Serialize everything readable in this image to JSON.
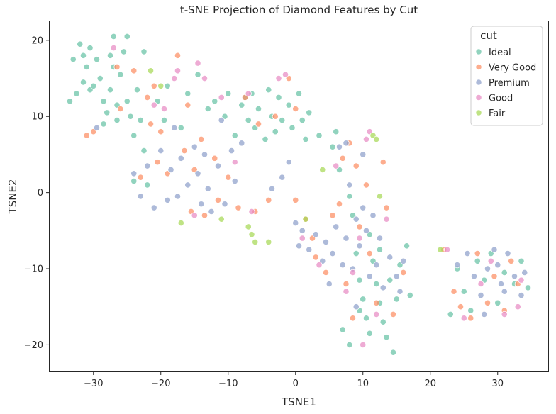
{
  "chart_data": {
    "type": "scatter",
    "title": "t-SNE Projection of Diamond Features by Cut",
    "xlabel": "TSNE1",
    "ylabel": "TSNE2",
    "xlim": [
      -36.5,
      37.5
    ],
    "ylim": [
      -23.5,
      22.5
    ],
    "xticks": [
      -30,
      -20,
      -10,
      0,
      10,
      20,
      30
    ],
    "yticks": [
      -20,
      -10,
      0,
      10,
      20
    ],
    "xtick_labels": [
      "−30",
      "−20",
      "−10",
      "0",
      "10",
      "20",
      "30"
    ],
    "ytick_labels": [
      "−20",
      "−10",
      "0",
      "10",
      "20"
    ],
    "grid": false,
    "legend": {
      "title": "cut",
      "placement": "top-right"
    },
    "series": [
      {
        "name": "Ideal",
        "color": "#66c2a5",
        "points": [
          [
            -33.5,
            12.0
          ],
          [
            -33.0,
            17.5
          ],
          [
            -32.5,
            13.0
          ],
          [
            -32.0,
            19.5
          ],
          [
            -31.5,
            18.0
          ],
          [
            -31.5,
            14.5
          ],
          [
            -31.0,
            16.5
          ],
          [
            -30.5,
            19.0
          ],
          [
            -30.5,
            13.5
          ],
          [
            -30.0,
            14.0
          ],
          [
            -29.5,
            17.5
          ],
          [
            -29.0,
            15.0
          ],
          [
            -28.5,
            12.0
          ],
          [
            -28.5,
            9.0
          ],
          [
            -28.0,
            10.5
          ],
          [
            -27.5,
            18.0
          ],
          [
            -27.5,
            13.5
          ],
          [
            -27.0,
            20.5
          ],
          [
            -27.0,
            16.5
          ],
          [
            -26.5,
            11.5
          ],
          [
            -26.5,
            9.5
          ],
          [
            -26.0,
            15.5
          ],
          [
            -25.5,
            18.5
          ],
          [
            -25.0,
            20.5
          ],
          [
            -25.0,
            12.0
          ],
          [
            -24.5,
            10.0
          ],
          [
            -24.0,
            7.5
          ],
          [
            -23.5,
            13.5
          ],
          [
            -23.0,
            9.5
          ],
          [
            -22.5,
            18.5
          ],
          [
            -22.5,
            5.5
          ],
          [
            -24.0,
            1.5
          ],
          [
            -22.0,
            1.0
          ],
          [
            -20.5,
            12.0
          ],
          [
            -19.5,
            9.5
          ],
          [
            -19.0,
            14.0
          ],
          [
            -17.0,
            8.5
          ],
          [
            -16.0,
            13.0
          ],
          [
            -14.5,
            15.5
          ],
          [
            -13.0,
            11.0
          ],
          [
            -12.0,
            12.0
          ],
          [
            -10.5,
            10.0
          ],
          [
            -10.0,
            13.0
          ],
          [
            -9.0,
            7.5
          ],
          [
            -8.0,
            11.5
          ],
          [
            -7.5,
            12.5
          ],
          [
            -7.0,
            9.5
          ],
          [
            -6.5,
            13.0
          ],
          [
            -6.0,
            8.5
          ],
          [
            -5.5,
            11.0
          ],
          [
            -4.5,
            7.0
          ],
          [
            -4.0,
            13.5
          ],
          [
            -3.5,
            10.0
          ],
          [
            -3.0,
            8.0
          ],
          [
            -2.5,
            12.5
          ],
          [
            -2.0,
            9.5
          ],
          [
            -1.0,
            11.5
          ],
          [
            -0.5,
            8.5
          ],
          [
            0.5,
            13.0
          ],
          [
            1.0,
            9.5
          ],
          [
            1.5,
            7.0
          ],
          [
            2.0,
            10.5
          ],
          [
            3.5,
            7.5
          ],
          [
            5.5,
            6.0
          ],
          [
            6.0,
            8.0
          ],
          [
            6.5,
            3.0
          ],
          [
            8.0,
            -0.5
          ],
          [
            8.5,
            -3.0
          ],
          [
            9.0,
            -8.0
          ],
          [
            9.5,
            -11.5
          ],
          [
            10.0,
            -14.0
          ],
          [
            10.5,
            -16.5
          ],
          [
            11.0,
            -5.5
          ],
          [
            11.5,
            -9.0
          ],
          [
            12.0,
            -12.0
          ],
          [
            12.5,
            -14.5
          ],
          [
            13.0,
            -17.0
          ],
          [
            13.5,
            -19.0
          ],
          [
            14.0,
            -11.5
          ],
          [
            14.5,
            -21.0
          ],
          [
            15.0,
            -14.0
          ],
          [
            15.5,
            -9.5
          ],
          [
            16.5,
            -7.0
          ],
          [
            17.0,
            -13.5
          ],
          [
            7.0,
            -18.0
          ],
          [
            8.0,
            -20.0
          ],
          [
            9.5,
            -15.5
          ],
          [
            11.0,
            -18.5
          ],
          [
            12.5,
            -7.5
          ],
          [
            25.0,
            -13.0
          ],
          [
            26.0,
            -15.5
          ],
          [
            27.0,
            -9.0
          ],
          [
            28.0,
            -11.5
          ],
          [
            29.0,
            -8.0
          ],
          [
            30.0,
            -14.5
          ],
          [
            31.0,
            -10.5
          ],
          [
            32.5,
            -12.0
          ],
          [
            33.5,
            -9.0
          ],
          [
            34.5,
            -12.5
          ],
          [
            23.0,
            -16.0
          ],
          [
            24.0,
            -10.0
          ]
        ]
      },
      {
        "name": "Very Good",
        "color": "#fc8d62",
        "points": [
          [
            -31.0,
            7.5
          ],
          [
            -30.0,
            8.0
          ],
          [
            -26.5,
            16.5
          ],
          [
            -26.0,
            11.0
          ],
          [
            -24.0,
            16.0
          ],
          [
            -23.0,
            2.0
          ],
          [
            -22.0,
            12.5
          ],
          [
            -21.5,
            9.0
          ],
          [
            -21.0,
            14.0
          ],
          [
            -20.5,
            4.0
          ],
          [
            -20.0,
            8.0
          ],
          [
            -19.0,
            2.5
          ],
          [
            -17.5,
            18.0
          ],
          [
            -16.5,
            5.5
          ],
          [
            -16.0,
            11.5
          ],
          [
            -15.5,
            -2.5
          ],
          [
            -15.0,
            3.0
          ],
          [
            -14.0,
            7.0
          ],
          [
            -13.5,
            -3.0
          ],
          [
            -12.0,
            4.5
          ],
          [
            -11.5,
            -1.0
          ],
          [
            -10.0,
            2.0
          ],
          [
            -8.5,
            -2.0
          ],
          [
            -7.5,
            12.5
          ],
          [
            -6.0,
            -2.5
          ],
          [
            -5.5,
            9.0
          ],
          [
            -4.0,
            -1.0
          ],
          [
            -3.0,
            10.0
          ],
          [
            -1.0,
            15.0
          ],
          [
            0.0,
            11.0
          ],
          [
            0.0,
            -1.0
          ],
          [
            1.5,
            -3.5
          ],
          [
            2.5,
            -6.0
          ],
          [
            3.0,
            -8.5
          ],
          [
            4.5,
            -10.5
          ],
          [
            5.5,
            -3.0
          ],
          [
            6.5,
            -1.5
          ],
          [
            7.0,
            4.5
          ],
          [
            7.5,
            -12.0
          ],
          [
            8.0,
            6.5
          ],
          [
            8.5,
            -16.5
          ],
          [
            9.0,
            3.5
          ],
          [
            9.5,
            -4.5
          ],
          [
            10.5,
            1.0
          ],
          [
            11.0,
            -8.0
          ],
          [
            12.0,
            -14.5
          ],
          [
            13.0,
            4.0
          ],
          [
            13.5,
            -2.0
          ],
          [
            14.5,
            -16.0
          ],
          [
            16.0,
            -10.5
          ],
          [
            22.0,
            -7.5
          ],
          [
            23.5,
            -13.0
          ],
          [
            24.5,
            -15.0
          ],
          [
            26.0,
            -16.5
          ],
          [
            27.0,
            -8.0
          ],
          [
            28.5,
            -14.5
          ],
          [
            29.5,
            -11.0
          ],
          [
            31.0,
            -15.5
          ],
          [
            32.0,
            -9.0
          ],
          [
            33.0,
            -12.0
          ]
        ]
      },
      {
        "name": "Premium",
        "color": "#8da0cb",
        "points": [
          [
            -29.5,
            8.5
          ],
          [
            -24.0,
            2.5
          ],
          [
            -23.0,
            -0.5
          ],
          [
            -22.0,
            3.5
          ],
          [
            -21.0,
            -2.0
          ],
          [
            -20.0,
            5.5
          ],
          [
            -19.0,
            -1.0
          ],
          [
            -18.5,
            3.0
          ],
          [
            -18.0,
            8.5
          ],
          [
            -17.5,
            -0.5
          ],
          [
            -17.0,
            4.5
          ],
          [
            -16.0,
            1.0
          ],
          [
            -15.0,
            6.0
          ],
          [
            -14.5,
            2.5
          ],
          [
            -14.0,
            -1.5
          ],
          [
            -13.5,
            5.0
          ],
          [
            -13.0,
            0.5
          ],
          [
            -12.5,
            -2.5
          ],
          [
            -11.5,
            3.5
          ],
          [
            -11.0,
            9.5
          ],
          [
            -10.5,
            -1.5
          ],
          [
            -9.5,
            5.5
          ],
          [
            -9.0,
            1.5
          ],
          [
            -8.0,
            6.5
          ],
          [
            -3.5,
            0.5
          ],
          [
            -2.0,
            2.0
          ],
          [
            -1.0,
            4.0
          ],
          [
            0.0,
            -4.0
          ],
          [
            0.5,
            -7.0
          ],
          [
            1.0,
            -5.0
          ],
          [
            2.0,
            -7.5
          ],
          [
            3.0,
            -5.5
          ],
          [
            4.0,
            -9.0
          ],
          [
            4.5,
            -6.5
          ],
          [
            5.0,
            -12.0
          ],
          [
            5.5,
            -8.0
          ],
          [
            6.0,
            -4.5
          ],
          [
            6.5,
            6.0
          ],
          [
            7.0,
            -9.5
          ],
          [
            7.5,
            -6.0
          ],
          [
            8.0,
            1.0
          ],
          [
            8.5,
            -10.0
          ],
          [
            9.0,
            -3.5
          ],
          [
            9.5,
            -7.0
          ],
          [
            10.0,
            -2.0
          ],
          [
            10.5,
            -5.0
          ],
          [
            11.0,
            -11.0
          ],
          [
            11.5,
            -3.0
          ],
          [
            12.0,
            -9.5
          ],
          [
            12.5,
            -6.0
          ],
          [
            13.0,
            -12.5
          ],
          [
            14.0,
            -8.5
          ],
          [
            15.0,
            -11.0
          ],
          [
            15.5,
            -13.0
          ],
          [
            16.0,
            -9.0
          ],
          [
            7.5,
            6.5
          ],
          [
            10.0,
            5.0
          ],
          [
            9.0,
            -15.0
          ],
          [
            24.0,
            -9.5
          ],
          [
            25.5,
            -8.0
          ],
          [
            26.5,
            -11.0
          ],
          [
            27.5,
            -13.5
          ],
          [
            28.5,
            -10.0
          ],
          [
            29.5,
            -7.5
          ],
          [
            30.5,
            -12.0
          ],
          [
            31.5,
            -8.0
          ],
          [
            32.5,
            -11.0
          ],
          [
            33.5,
            -13.5
          ],
          [
            34.0,
            -10.5
          ],
          [
            28.0,
            -16.0
          ],
          [
            30.0,
            -9.5
          ],
          [
            31.0,
            -13.0
          ]
        ]
      },
      {
        "name": "Good",
        "color": "#e78ac3",
        "points": [
          [
            -27.0,
            19.0
          ],
          [
            -21.0,
            11.5
          ],
          [
            -19.5,
            11.0
          ],
          [
            -18.0,
            15.0
          ],
          [
            -17.5,
            16.0
          ],
          [
            -15.0,
            -3.0
          ],
          [
            -14.5,
            17.0
          ],
          [
            -13.5,
            15.0
          ],
          [
            -11.0,
            12.5
          ],
          [
            -9.0,
            4.0
          ],
          [
            -7.0,
            13.0
          ],
          [
            -6.5,
            -2.5
          ],
          [
            -2.5,
            15.0
          ],
          [
            -1.5,
            15.5
          ],
          [
            1.0,
            -6.0
          ],
          [
            3.5,
            -9.5
          ],
          [
            6.0,
            3.5
          ],
          [
            7.5,
            -13.0
          ],
          [
            8.5,
            -10.5
          ],
          [
            9.5,
            -6.0
          ],
          [
            10.0,
            -20.0
          ],
          [
            10.5,
            7.0
          ],
          [
            11.0,
            8.0
          ],
          [
            12.0,
            -16.0
          ],
          [
            13.5,
            -3.5
          ],
          [
            22.5,
            -7.5
          ],
          [
            25.0,
            -16.5
          ],
          [
            27.5,
            -12.0
          ],
          [
            29.0,
            -9.0
          ],
          [
            31.0,
            -16.0
          ],
          [
            33.0,
            -15.0
          ],
          [
            33.5,
            -11.5
          ]
        ]
      },
      {
        "name": "Fair",
        "color": "#a6d854",
        "points": [
          [
            -21.5,
            16.0
          ],
          [
            -20.0,
            14.0
          ],
          [
            -17.0,
            -4.0
          ],
          [
            -11.0,
            -3.5
          ],
          [
            -7.0,
            -4.5
          ],
          [
            -6.5,
            -5.5
          ],
          [
            -6.0,
            -6.5
          ],
          [
            -4.0,
            -6.5
          ],
          [
            1.5,
            -3.5
          ],
          [
            4.0,
            3.0
          ],
          [
            11.5,
            7.5
          ],
          [
            12.0,
            7.0
          ],
          [
            12.5,
            -0.5
          ],
          [
            21.5,
            -7.5
          ]
        ]
      }
    ]
  }
}
